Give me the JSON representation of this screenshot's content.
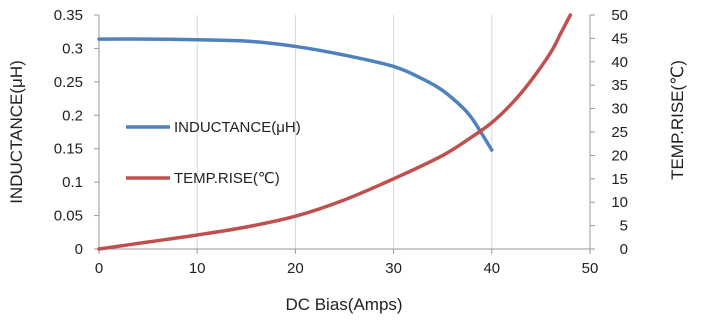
{
  "chart_data": {
    "type": "line",
    "title": "",
    "xlabel": "DC Bias(Amps)",
    "ylabel": "INDUCTANCE(μH)",
    "y2label": "TEMP.RISE(℃)",
    "xlim": [
      0,
      50
    ],
    "ylim": [
      0,
      0.35
    ],
    "y2lim": [
      0,
      50
    ],
    "x_ticks": [
      "0",
      "10",
      "20",
      "30",
      "40",
      "50"
    ],
    "y_ticks": [
      "0",
      "0.05",
      "0.1",
      "0.15",
      "0.2",
      "0.25",
      "0.3",
      "0.35"
    ],
    "y2_ticks": [
      "0",
      "5",
      "10",
      "15",
      "20",
      "25",
      "30",
      "35",
      "40",
      "45",
      "50"
    ],
    "grid": "vertical",
    "legend": "inside-left",
    "series": [
      {
        "name": "INDUCTANCE(μH)",
        "axis": "left",
        "color": "#4f81bd",
        "x": [
          0,
          5,
          10,
          15,
          20,
          25,
          30,
          33,
          35,
          37,
          38,
          39,
          40
        ],
        "y": [
          0.314,
          0.314,
          0.313,
          0.311,
          0.303,
          0.29,
          0.273,
          0.254,
          0.237,
          0.212,
          0.195,
          0.172,
          0.148
        ]
      },
      {
        "name": "TEMP.RISE(℃)",
        "axis": "right",
        "color": "#c0504d",
        "x": [
          0,
          5,
          10,
          15,
          20,
          25,
          30,
          35,
          38,
          40,
          42,
          44,
          46,
          47,
          48
        ],
        "y": [
          0,
          1.5,
          3,
          4.7,
          7,
          10.5,
          15,
          20,
          24,
          27,
          31,
          36,
          42,
          46,
          50
        ]
      }
    ]
  }
}
